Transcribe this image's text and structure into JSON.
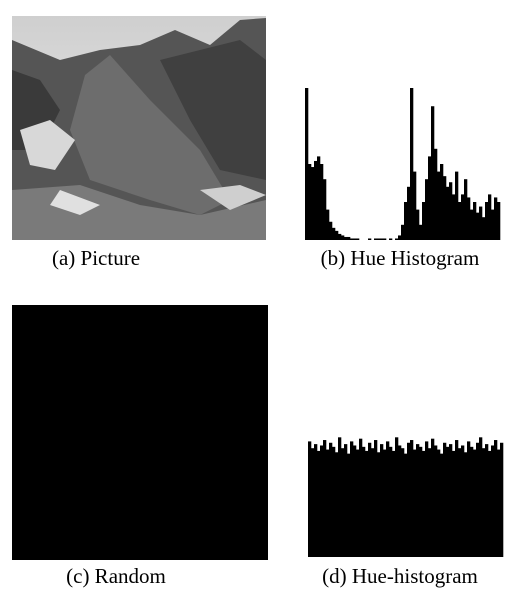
{
  "panels": [
    {
      "caption": "(a) Picture"
    },
    {
      "caption": "(c) Random"
    }
  ],
  "chart_data": [
    {
      "type": "histogram",
      "title": "(b) Hue Histogram",
      "color": "#000000",
      "ylim": [
        0,
        100
      ],
      "values": [
        100,
        50,
        48,
        52,
        55,
        50,
        40,
        20,
        12,
        8,
        6,
        4,
        3,
        2,
        2,
        1,
        1,
        1,
        0,
        0,
        0,
        1,
        0,
        1,
        1,
        1,
        1,
        0,
        1,
        0,
        1,
        3,
        10,
        25,
        35,
        100,
        45,
        20,
        10,
        25,
        40,
        55,
        88,
        60,
        45,
        50,
        42,
        35,
        38,
        30,
        45,
        25,
        30,
        40,
        28,
        20,
        25,
        18,
        22,
        15,
        25,
        30,
        20,
        28,
        25
      ]
    },
    {
      "type": "histogram",
      "title": "(d) Hue-histogram",
      "color": "#000000",
      "ylim": [
        0,
        100
      ],
      "values": [
        85,
        80,
        83,
        78,
        82,
        86,
        79,
        84,
        81,
        77,
        88,
        80,
        83,
        76,
        85,
        82,
        79,
        87,
        81,
        78,
        84,
        80,
        86,
        77,
        83,
        79,
        85,
        81,
        78,
        88,
        82,
        80,
        76,
        84,
        86,
        79,
        83,
        81,
        78,
        85,
        80,
        87,
        82,
        79,
        76,
        84,
        81,
        83,
        78,
        86,
        80,
        82,
        77,
        85,
        81,
        79,
        84,
        88,
        80,
        83,
        78,
        82,
        86,
        79,
        84
      ]
    }
  ]
}
